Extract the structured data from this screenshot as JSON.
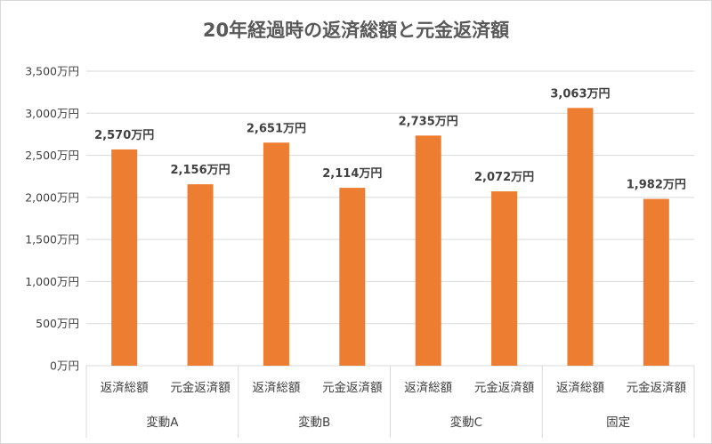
{
  "chart_data": {
    "type": "bar",
    "title": "20年経過時の返済総額と元金返済額",
    "groups": [
      {
        "label": "変動A",
        "categories": [
          "返済総額",
          "元金返済額"
        ],
        "values": [
          2570,
          2156
        ]
      },
      {
        "label": "変動B",
        "categories": [
          "返済総額",
          "元金返済額"
        ],
        "values": [
          2651,
          2114
        ]
      },
      {
        "label": "変動C",
        "categories": [
          "返済総額",
          "元金返済額"
        ],
        "values": [
          2735,
          2072
        ]
      },
      {
        "label": "固定",
        "categories": [
          "返済総額",
          "元金返済額"
        ],
        "values": [
          3063,
          1982
        ]
      }
    ],
    "value_labels": [
      "2,570万円",
      "2,156万円",
      "2,651万円",
      "2,114万円",
      "2,735万円",
      "2,072万円",
      "3,063万円",
      "1,982万円"
    ],
    "ylim": [
      0,
      3500
    ],
    "y_ticks": [
      0,
      500,
      1000,
      1500,
      2000,
      2500,
      3000,
      3500
    ],
    "y_tick_labels": [
      "0万円",
      "500万円",
      "1,000万円",
      "1,500万円",
      "2,000万円",
      "2,500万円",
      "3,000万円",
      "3,500万円"
    ],
    "grid": true,
    "legend": "none",
    "bar_color": "#ed7d31",
    "gridline_color": "#d9d9d9",
    "text_color": "#404040"
  }
}
